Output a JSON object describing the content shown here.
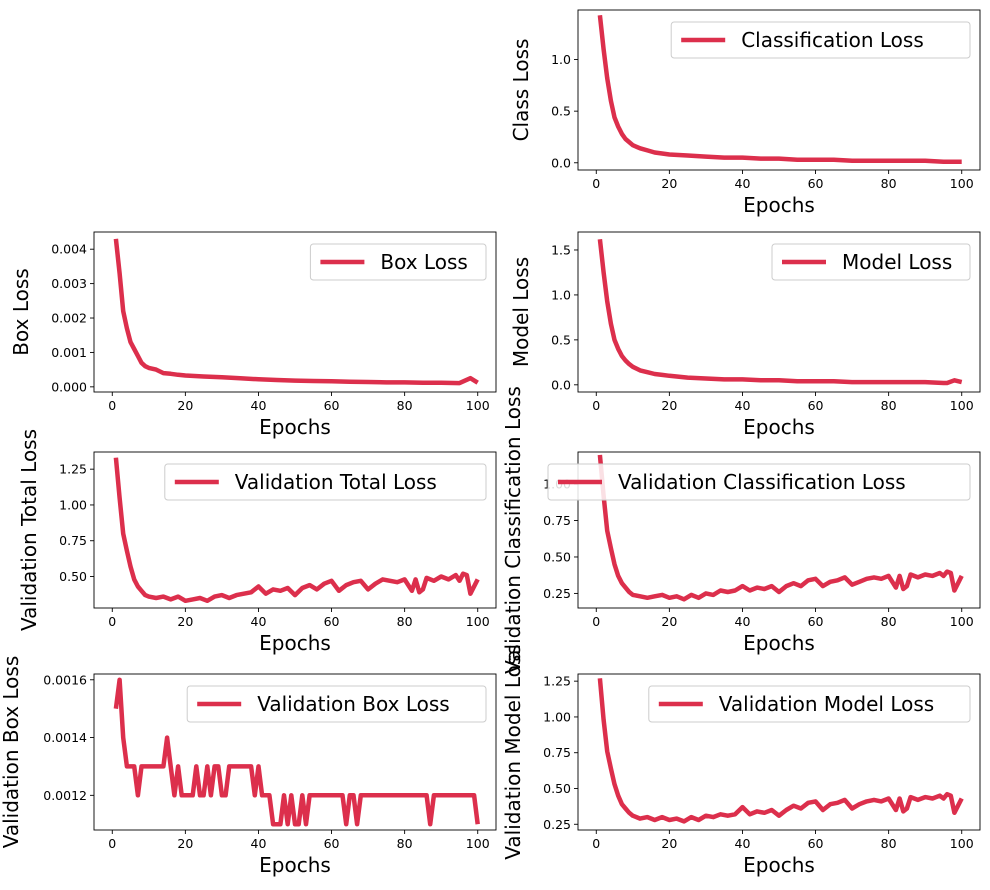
{
  "figure": {
    "line_color": "#dc2f4c",
    "background": "#ffffff"
  },
  "chart_data": [
    {
      "id": "classification",
      "type": "line",
      "xlabel": "Epochs",
      "ylabel": "Class Loss",
      "xlim": [
        -5,
        105
      ],
      "ylim": [
        -0.07,
        1.48
      ],
      "xticks": [
        0,
        20,
        40,
        60,
        80,
        100
      ],
      "yticks": [
        0.0,
        0.5,
        1.0
      ],
      "ytick_labels": [
        "0.0",
        "0.5",
        "1.0"
      ],
      "legend": "top-right",
      "series": [
        {
          "name": "Classification Loss",
          "x": [
            1,
            2,
            3,
            4,
            5,
            6,
            7,
            8,
            9,
            10,
            12,
            14,
            16,
            18,
            20,
            25,
            30,
            35,
            40,
            45,
            50,
            55,
            60,
            65,
            70,
            75,
            80,
            85,
            90,
            95,
            96,
            98,
            100
          ],
          "y": [
            1.43,
            1.1,
            0.82,
            0.6,
            0.44,
            0.35,
            0.28,
            0.23,
            0.2,
            0.17,
            0.14,
            0.12,
            0.1,
            0.09,
            0.08,
            0.07,
            0.06,
            0.05,
            0.05,
            0.04,
            0.04,
            0.03,
            0.03,
            0.03,
            0.02,
            0.02,
            0.02,
            0.02,
            0.02,
            0.01,
            0.01,
            0.01,
            0.01
          ]
        }
      ]
    },
    {
      "id": "box",
      "type": "line",
      "xlabel": "Epochs",
      "ylabel": "Box Loss",
      "xlim": [
        -5,
        105
      ],
      "ylim": [
        -0.00015,
        0.0045
      ],
      "xticks": [
        0,
        20,
        40,
        60,
        80,
        100
      ],
      "yticks": [
        0.0,
        0.001,
        0.002,
        0.003,
        0.004
      ],
      "ytick_labels": [
        "0.000",
        "0.001",
        "0.002",
        "0.003",
        "0.004"
      ],
      "legend": "top-right",
      "series": [
        {
          "name": "Box Loss",
          "x": [
            1,
            2,
            3,
            4,
            5,
            6,
            7,
            8,
            9,
            10,
            12,
            14,
            16,
            18,
            20,
            25,
            30,
            35,
            40,
            45,
            50,
            55,
            60,
            65,
            70,
            75,
            80,
            85,
            90,
            95,
            98,
            100
          ],
          "y": [
            0.0043,
            0.0033,
            0.0022,
            0.0017,
            0.0013,
            0.0011,
            0.0009,
            0.0007,
            0.0006,
            0.00055,
            0.0005,
            0.0004,
            0.00038,
            0.00035,
            0.00033,
            0.0003,
            0.00028,
            0.00025,
            0.00022,
            0.0002,
            0.00018,
            0.00017,
            0.00016,
            0.00015,
            0.00014,
            0.00013,
            0.00013,
            0.00012,
            0.00012,
            0.00011,
            0.00025,
            0.00012
          ]
        }
      ]
    },
    {
      "id": "model",
      "type": "line",
      "xlabel": "Epochs",
      "ylabel": "Model Loss",
      "xlim": [
        -5,
        105
      ],
      "ylim": [
        -0.08,
        1.7
      ],
      "xticks": [
        0,
        20,
        40,
        60,
        80,
        100
      ],
      "yticks": [
        0.0,
        0.5,
        1.0,
        1.5
      ],
      "ytick_labels": [
        "0.0",
        "0.5",
        "1.0",
        "1.5"
      ],
      "legend": "top-right",
      "series": [
        {
          "name": "Model Loss",
          "x": [
            1,
            2,
            3,
            4,
            5,
            6,
            7,
            8,
            9,
            10,
            12,
            14,
            16,
            18,
            20,
            25,
            30,
            35,
            40,
            45,
            50,
            55,
            60,
            65,
            70,
            75,
            80,
            85,
            90,
            95,
            96,
            98,
            100
          ],
          "y": [
            1.62,
            1.25,
            0.93,
            0.68,
            0.5,
            0.4,
            0.32,
            0.27,
            0.23,
            0.2,
            0.16,
            0.14,
            0.12,
            0.11,
            0.1,
            0.08,
            0.07,
            0.06,
            0.06,
            0.05,
            0.05,
            0.04,
            0.04,
            0.04,
            0.03,
            0.03,
            0.03,
            0.03,
            0.03,
            0.02,
            0.02,
            0.05,
            0.03
          ]
        }
      ]
    },
    {
      "id": "val_total",
      "type": "line",
      "xlabel": "Epochs",
      "ylabel": "Validation Total Loss",
      "xlim": [
        -5,
        105
      ],
      "ylim": [
        0.28,
        1.37
      ],
      "xticks": [
        0,
        20,
        40,
        60,
        80,
        100
      ],
      "yticks": [
        0.5,
        0.75,
        1.0,
        1.25
      ],
      "ytick_labels": [
        "0.50",
        "0.75",
        "1.00",
        "1.25"
      ],
      "legend": "top-right",
      "series": [
        {
          "name": "Validation Total Loss",
          "x": [
            1,
            2,
            3,
            4,
            5,
            6,
            7,
            8,
            9,
            10,
            12,
            14,
            16,
            18,
            20,
            22,
            24,
            26,
            28,
            30,
            32,
            34,
            36,
            38,
            40,
            42,
            44,
            46,
            48,
            50,
            52,
            54,
            56,
            58,
            60,
            62,
            64,
            66,
            68,
            70,
            72,
            74,
            76,
            78,
            80,
            82,
            83,
            84,
            85,
            86,
            88,
            90,
            92,
            94,
            95,
            96,
            97,
            98,
            100
          ],
          "y": [
            1.33,
            1.05,
            0.8,
            0.68,
            0.57,
            0.48,
            0.43,
            0.4,
            0.37,
            0.36,
            0.35,
            0.36,
            0.34,
            0.36,
            0.33,
            0.34,
            0.35,
            0.33,
            0.36,
            0.37,
            0.35,
            0.37,
            0.38,
            0.39,
            0.43,
            0.38,
            0.41,
            0.4,
            0.42,
            0.37,
            0.42,
            0.44,
            0.41,
            0.45,
            0.47,
            0.4,
            0.44,
            0.46,
            0.47,
            0.41,
            0.45,
            0.48,
            0.47,
            0.46,
            0.48,
            0.4,
            0.48,
            0.39,
            0.41,
            0.49,
            0.47,
            0.5,
            0.48,
            0.51,
            0.47,
            0.52,
            0.51,
            0.38,
            0.48
          ]
        }
      ]
    },
    {
      "id": "val_class",
      "type": "line",
      "xlabel": "Epochs",
      "ylabel": "Validation Classification Loss",
      "xlim": [
        -5,
        105
      ],
      "ylim": [
        0.15,
        1.22
      ],
      "xticks": [
        0,
        20,
        40,
        60,
        80,
        100
      ],
      "yticks": [
        0.25,
        0.5,
        0.75,
        1.0
      ],
      "ytick_labels": [
        "0.25",
        "0.50",
        "0.75",
        "1.00"
      ],
      "legend": "top-right",
      "series": [
        {
          "name": "Validation Classification Loss",
          "x": [
            1,
            2,
            3,
            4,
            5,
            6,
            7,
            8,
            9,
            10,
            12,
            14,
            16,
            18,
            20,
            22,
            24,
            26,
            28,
            30,
            32,
            34,
            36,
            38,
            40,
            42,
            44,
            46,
            48,
            50,
            52,
            54,
            56,
            58,
            60,
            62,
            64,
            66,
            68,
            70,
            72,
            74,
            76,
            78,
            80,
            82,
            83,
            84,
            85,
            86,
            88,
            90,
            92,
            94,
            95,
            96,
            97,
            98,
            100
          ],
          "y": [
            1.2,
            0.92,
            0.68,
            0.56,
            0.45,
            0.37,
            0.32,
            0.29,
            0.26,
            0.24,
            0.23,
            0.22,
            0.23,
            0.24,
            0.22,
            0.23,
            0.21,
            0.24,
            0.22,
            0.25,
            0.24,
            0.27,
            0.26,
            0.27,
            0.3,
            0.27,
            0.29,
            0.28,
            0.3,
            0.26,
            0.3,
            0.32,
            0.3,
            0.34,
            0.35,
            0.3,
            0.33,
            0.34,
            0.36,
            0.31,
            0.33,
            0.35,
            0.36,
            0.35,
            0.37,
            0.29,
            0.37,
            0.28,
            0.3,
            0.38,
            0.36,
            0.38,
            0.37,
            0.39,
            0.37,
            0.4,
            0.39,
            0.27,
            0.37
          ]
        }
      ]
    },
    {
      "id": "val_box",
      "type": "line",
      "xlabel": "Epochs",
      "ylabel": "Validation Box Loss",
      "xlim": [
        -5,
        105
      ],
      "ylim": [
        0.00108,
        0.00162
      ],
      "xticks": [
        0,
        20,
        40,
        60,
        80,
        100
      ],
      "yticks": [
        0.0012,
        0.0014,
        0.0016
      ],
      "ytick_labels": [
        "0.0012",
        "0.0014",
        "0.0016"
      ],
      "legend": "top-right",
      "series": [
        {
          "name": "Validation Box Loss",
          "x": [
            1,
            2,
            3,
            4,
            5,
            6,
            7,
            8,
            9,
            10,
            11,
            12,
            13,
            14,
            15,
            16,
            17,
            18,
            19,
            20,
            21,
            22,
            23,
            24,
            25,
            26,
            27,
            28,
            29,
            30,
            31,
            32,
            33,
            34,
            35,
            36,
            37,
            38,
            39,
            40,
            41,
            42,
            43,
            44,
            45,
            46,
            47,
            48,
            49,
            50,
            51,
            52,
            53,
            54,
            55,
            56,
            57,
            58,
            59,
            60,
            61,
            62,
            63,
            64,
            65,
            66,
            67,
            68,
            69,
            70,
            72,
            74,
            76,
            78,
            80,
            82,
            84,
            86,
            87,
            88,
            90,
            92,
            94,
            96,
            98,
            99,
            100
          ],
          "y": [
            0.0015,
            0.0016,
            0.0014,
            0.0013,
            0.0013,
            0.0013,
            0.0012,
            0.0013,
            0.0013,
            0.0013,
            0.0013,
            0.0013,
            0.0013,
            0.0013,
            0.0014,
            0.0013,
            0.0012,
            0.0013,
            0.0012,
            0.0012,
            0.0012,
            0.0012,
            0.0013,
            0.0012,
            0.0012,
            0.0013,
            0.0012,
            0.0013,
            0.0013,
            0.0012,
            0.0012,
            0.0013,
            0.0013,
            0.0013,
            0.0013,
            0.0013,
            0.0013,
            0.0013,
            0.0012,
            0.0013,
            0.0012,
            0.0012,
            0.0012,
            0.0011,
            0.0011,
            0.0011,
            0.0012,
            0.0011,
            0.0012,
            0.0011,
            0.0011,
            0.0012,
            0.0011,
            0.0012,
            0.0012,
            0.0012,
            0.0012,
            0.0012,
            0.0012,
            0.0012,
            0.0012,
            0.0012,
            0.0012,
            0.0011,
            0.0012,
            0.0012,
            0.0011,
            0.0012,
            0.0012,
            0.0012,
            0.0012,
            0.0012,
            0.0012,
            0.0012,
            0.0012,
            0.0012,
            0.0012,
            0.0012,
            0.0011,
            0.0012,
            0.0012,
            0.0012,
            0.0012,
            0.0012,
            0.0012,
            0.0012,
            0.0011
          ]
        }
      ]
    },
    {
      "id": "val_model",
      "type": "line",
      "xlabel": "Epochs",
      "ylabel": "Validation Model Loss",
      "xlim": [
        -5,
        105
      ],
      "ylim": [
        0.21,
        1.3
      ],
      "xticks": [
        0,
        20,
        40,
        60,
        80,
        100
      ],
      "yticks": [
        0.25,
        0.5,
        0.75,
        1.0,
        1.25
      ],
      "ytick_labels": [
        "0.25",
        "0.50",
        "0.75",
        "1.00",
        "1.25"
      ],
      "legend": "top-right",
      "series": [
        {
          "name": "Validation Model Loss",
          "x": [
            1,
            2,
            3,
            4,
            5,
            6,
            7,
            8,
            9,
            10,
            12,
            14,
            16,
            18,
            20,
            22,
            24,
            26,
            28,
            30,
            32,
            34,
            36,
            38,
            40,
            42,
            44,
            46,
            48,
            50,
            52,
            54,
            56,
            58,
            60,
            62,
            64,
            66,
            68,
            70,
            72,
            74,
            76,
            78,
            80,
            82,
            83,
            84,
            85,
            86,
            88,
            90,
            92,
            94,
            95,
            96,
            97,
            98,
            100
          ],
          "y": [
            1.27,
            0.98,
            0.76,
            0.64,
            0.53,
            0.45,
            0.39,
            0.36,
            0.33,
            0.31,
            0.29,
            0.3,
            0.28,
            0.3,
            0.28,
            0.29,
            0.27,
            0.3,
            0.28,
            0.31,
            0.3,
            0.32,
            0.31,
            0.32,
            0.37,
            0.32,
            0.34,
            0.33,
            0.35,
            0.31,
            0.35,
            0.38,
            0.36,
            0.4,
            0.41,
            0.35,
            0.39,
            0.4,
            0.42,
            0.36,
            0.39,
            0.41,
            0.42,
            0.41,
            0.43,
            0.35,
            0.43,
            0.34,
            0.36,
            0.44,
            0.42,
            0.44,
            0.43,
            0.45,
            0.43,
            0.46,
            0.45,
            0.33,
            0.43
          ]
        }
      ]
    }
  ]
}
